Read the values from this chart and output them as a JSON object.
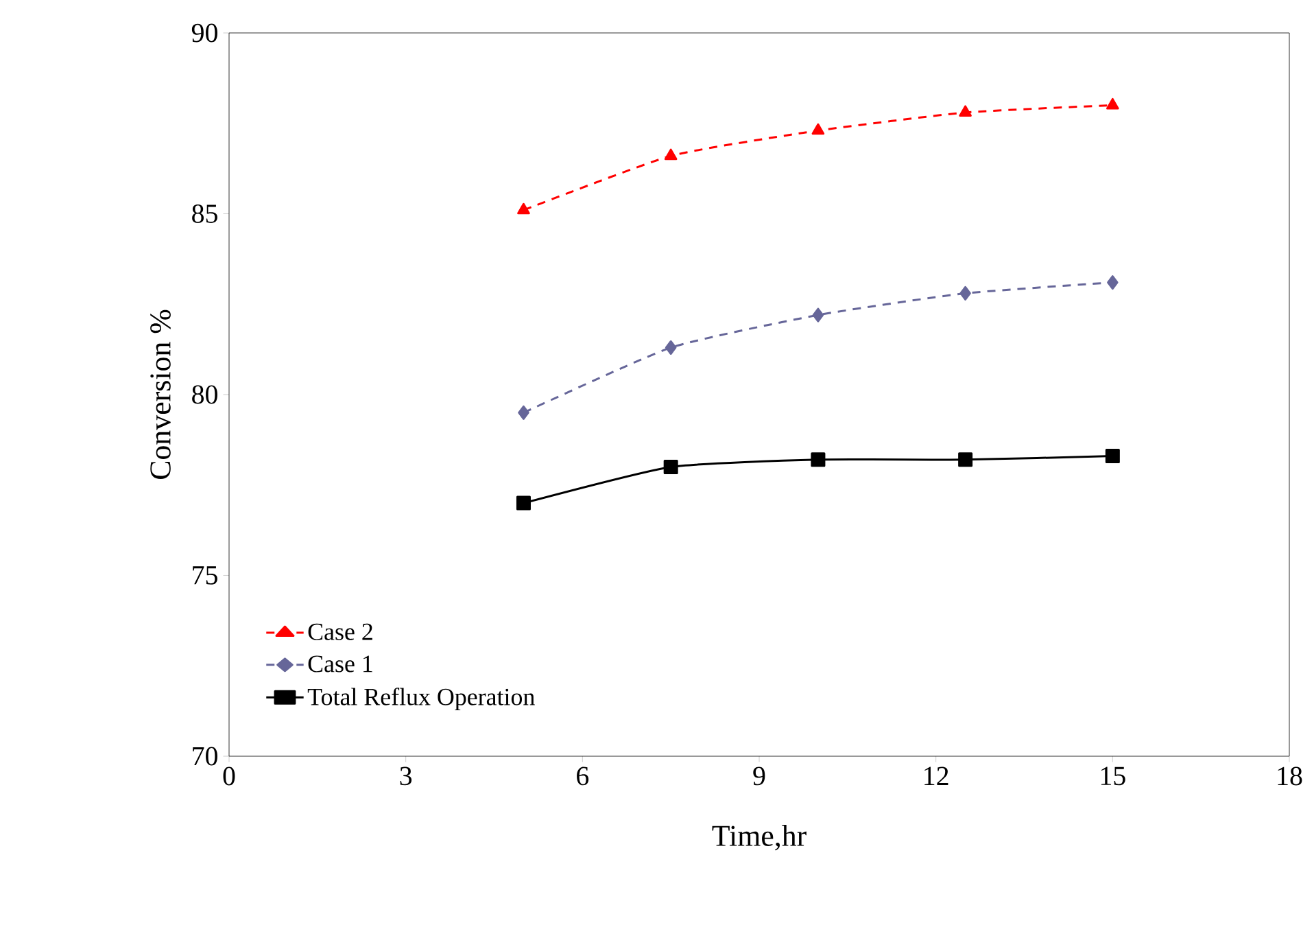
{
  "chart_data": {
    "type": "line",
    "xlabel": "Time,hr",
    "ylabel": "Conversion %",
    "xlim": [
      0,
      18
    ],
    "xticks": [
      0,
      3,
      6,
      9,
      12,
      15,
      18
    ],
    "ylim": [
      70,
      90
    ],
    "yticks": [
      70,
      75,
      80,
      85,
      90
    ],
    "grid": false,
    "legend": "bottom left",
    "series": [
      {
        "name": "Case 2",
        "color": "#ff0000",
        "marker": "triangle",
        "line_style": "dashed",
        "x": [
          5,
          7.5,
          10,
          12.5,
          15
        ],
        "values": [
          85.1,
          86.6,
          87.3,
          87.8,
          88.0
        ]
      },
      {
        "name": "Case 1",
        "color": "#666699",
        "marker": "diamond",
        "line_style": "dashed",
        "x": [
          5,
          7.5,
          10,
          12.5,
          15
        ],
        "values": [
          79.5,
          81.3,
          82.2,
          82.8,
          83.1
        ]
      },
      {
        "name": "Total Reflux Operation",
        "color": "#000000",
        "marker": "square",
        "line_style": "solid",
        "x": [
          5,
          7.5,
          10,
          12.5,
          15
        ],
        "values": [
          77.0,
          78.0,
          78.2,
          78.2,
          78.3
        ]
      }
    ]
  }
}
